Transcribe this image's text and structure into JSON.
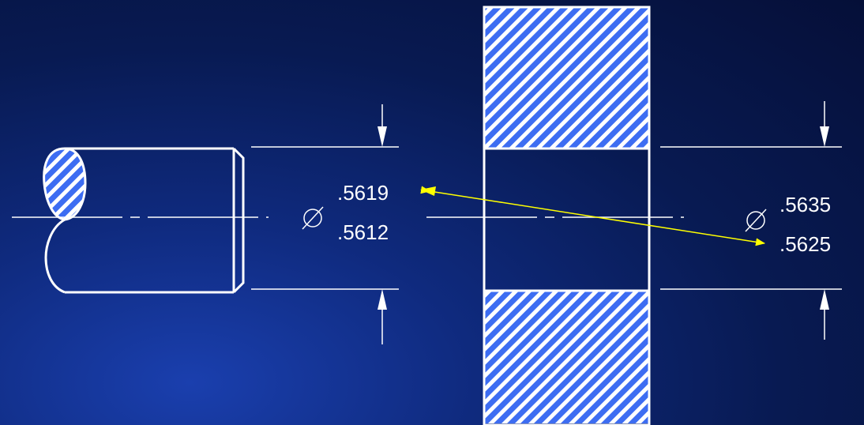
{
  "shaft": {
    "diameter_max": ".5619",
    "diameter_min": ".5612"
  },
  "hole": {
    "diameter_max": ".5635",
    "diameter_min": ".5625"
  },
  "colors": {
    "hatch_blue": "#3d6df2",
    "line_white": "#ffffff",
    "arrow_yellow": "#ffff00"
  },
  "icons": {
    "diameter_symbol": "diameter-icon"
  }
}
